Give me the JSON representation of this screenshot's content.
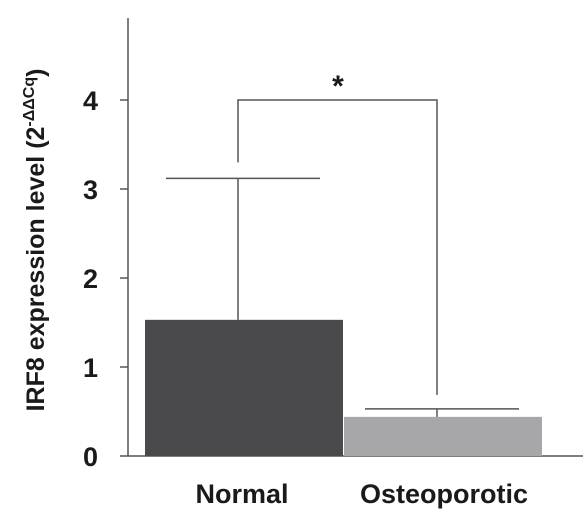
{
  "chart_data": {
    "type": "bar",
    "categories": [
      "Normal",
      "Osteoporotic"
    ],
    "values": [
      1.53,
      0.44
    ],
    "error_upper": [
      3.12,
      0.53
    ],
    "ylabel_main": "IRF8 expression level (2",
    "ylabel_exp": "-ΔΔCq",
    "ylabel_close": ")",
    "ylim": [
      0,
      4.7
    ],
    "yticks": [
      "0",
      "1",
      "2",
      "3",
      "4"
    ],
    "ytick_values": [
      0,
      1,
      2,
      3,
      4
    ],
    "bar_colors": [
      "#4a4a4c",
      "#a7a7a9"
    ],
    "significance": "*",
    "grid": false,
    "legend": "none"
  }
}
